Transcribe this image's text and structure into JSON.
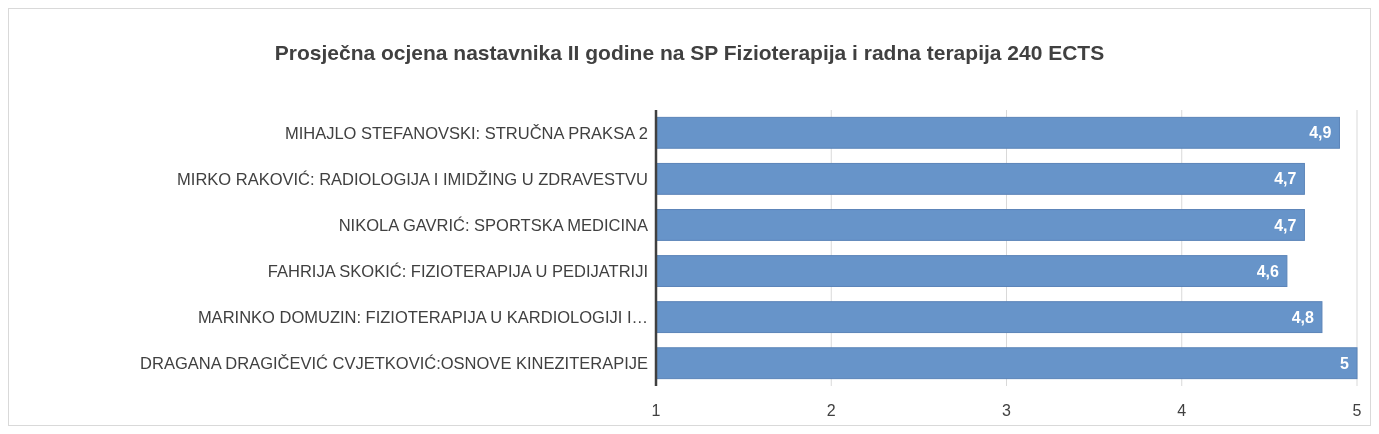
{
  "chart_data": {
    "type": "bar",
    "orientation": "horizontal",
    "title": "Prosječna ocjena nastavnika II godine na SP Fizioterapija i radna terapija 240 ECTS",
    "categories": [
      "MIHAJLO STEFANOVSKI: STRUČNA PRAKSA 2",
      "MIRKO RAKOVIĆ: RADIOLOGIJA I IMIDŽING U ZDRAVESTVU",
      "NIKOLA GAVRIĆ: SPORTSKA MEDICINA",
      "FAHRIJA SKOKIĆ: FIZIOTERAPIJA U PEDIJATRIJI",
      "MARINKO DOMUZIN: FIZIOTERAPIJA U KARDIOLOGIJI I…",
      "DRAGANA DRAGIČEVIĆ CVJETKOVIĆ:OSNOVE KINEZITERAPIJE"
    ],
    "values": [
      4.9,
      4.7,
      4.7,
      4.6,
      4.8,
      5
    ],
    "value_labels": [
      "4,9",
      "4,7",
      "4,7",
      "4,6",
      "4,8",
      "5"
    ],
    "color": "#6794c9",
    "xlim": [
      1,
      5
    ],
    "xticks": [
      1,
      2,
      3,
      4,
      5
    ],
    "grid": "x"
  }
}
